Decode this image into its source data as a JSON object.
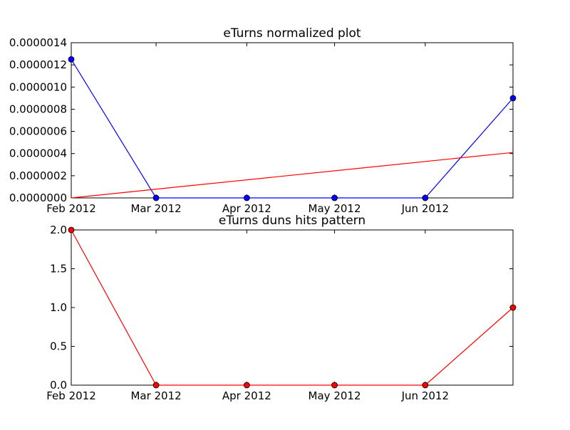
{
  "chart_data": [
    {
      "type": "line",
      "title": "eTurns normalized plot",
      "xlabel": "",
      "ylabel": "",
      "x_tick_labels": [
        "Feb 2012",
        "Mar 2012",
        "Apr 2012",
        "May 2012",
        "Jun 2012"
      ],
      "x_tick_dates": [
        "2012-02-01",
        "2012-03-01",
        "2012-04-01",
        "2012-05-01",
        "2012-06-01"
      ],
      "xlim": [
        "2012-02-01",
        "2012-07-01"
      ],
      "ylim": [
        0,
        1.4e-06
      ],
      "y_tick_labels": [
        "0.0000000",
        "0.0000002",
        "0.0000004",
        "0.0000006",
        "0.0000008",
        "0.0000010",
        "0.0000012",
        "0.0000014"
      ],
      "y_ticks": [
        0,
        2e-07,
        4e-07,
        6e-07,
        8e-07,
        1e-06,
        1.2e-06,
        1.4e-06
      ],
      "grid": false,
      "series": [
        {
          "color": "#0000ff",
          "marker": "circle",
          "x": [
            "2012-02-01",
            "2012-03-01",
            "2012-04-01",
            "2012-05-01",
            "2012-06-01",
            "2012-07-01"
          ],
          "y": [
            1.25e-06,
            0,
            0,
            0,
            0,
            9e-07
          ]
        },
        {
          "color": "#ff0000",
          "marker": "none",
          "x": [
            "2012-02-01",
            "2012-07-01"
          ],
          "y": [
            0,
            4.1e-07
          ]
        }
      ]
    },
    {
      "type": "line",
      "title": "eTurns duns hits pattern",
      "xlabel": "",
      "ylabel": "",
      "x_tick_labels": [
        "Feb 2012",
        "Mar 2012",
        "Apr 2012",
        "May 2012",
        "Jun 2012"
      ],
      "x_tick_dates": [
        "2012-02-01",
        "2012-03-01",
        "2012-04-01",
        "2012-05-01",
        "2012-06-01"
      ],
      "xlim": [
        "2012-02-01",
        "2012-07-01"
      ],
      "ylim": [
        0,
        2
      ],
      "y_tick_labels": [
        "0.0",
        "0.5",
        "1.0",
        "1.5",
        "2.0"
      ],
      "y_ticks": [
        0,
        0.5,
        1,
        1.5,
        2
      ],
      "grid": false,
      "series": [
        {
          "color": "#ff0000",
          "marker": "circle",
          "x": [
            "2012-02-01",
            "2012-03-01",
            "2012-04-01",
            "2012-05-01",
            "2012-06-01",
            "2012-07-01"
          ],
          "y": [
            2,
            0,
            0,
            0,
            0,
            1
          ]
        }
      ]
    }
  ]
}
